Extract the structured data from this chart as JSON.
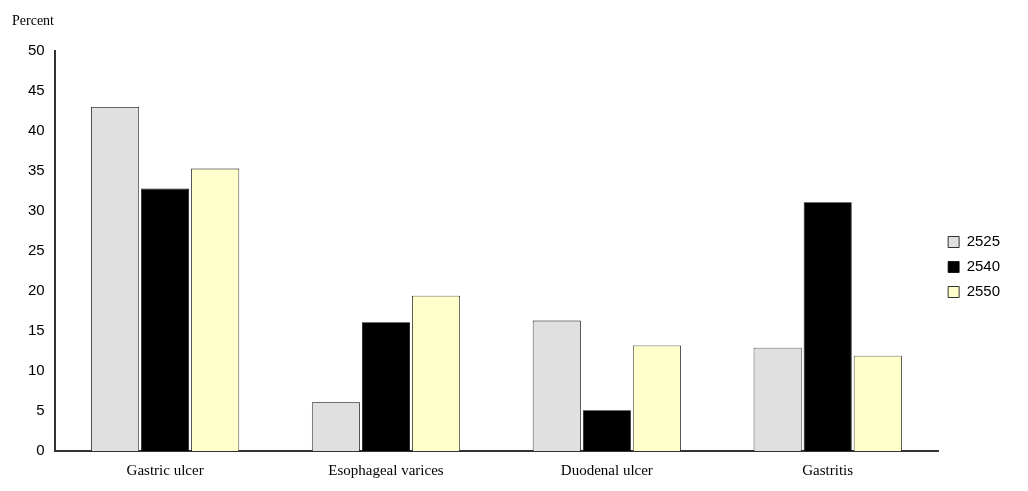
{
  "chart_data": {
    "type": "bar",
    "ylabel": "Percent",
    "categories": [
      "Gastric ulcer",
      "Esophageal varices",
      "Duodenal ulcer",
      "Gastritis"
    ],
    "series": [
      {
        "name": "2525",
        "color": "#e0e0e0",
        "values": [
          43.0,
          6.1,
          16.3,
          12.9
        ]
      },
      {
        "name": "2540",
        "color": "#000000",
        "values": [
          32.8,
          16.1,
          5.1,
          31.1
        ]
      },
      {
        "name": "2550",
        "color": "#ffffcc",
        "values": [
          35.3,
          19.4,
          13.2,
          11.9
        ]
      }
    ],
    "ylim": [
      0,
      50
    ],
    "yticks": [
      0,
      5,
      10,
      15,
      20,
      25,
      30,
      35,
      40,
      45,
      50
    ],
    "grid": false,
    "legend": "right"
  }
}
